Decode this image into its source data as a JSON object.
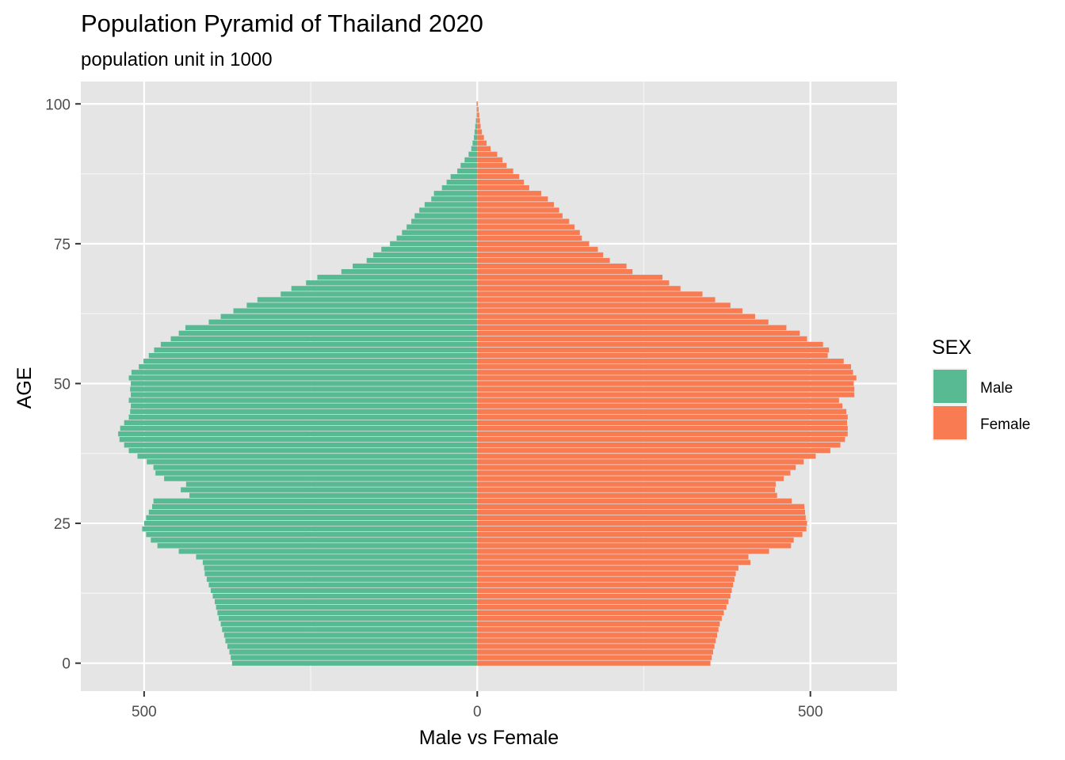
{
  "chart_data": {
    "type": "bar",
    "orientation": "horizontal",
    "title": "Population Pyramid of Thailand 2020",
    "subtitle": "population unit in 1000",
    "xlabel": "Male vs Female",
    "ylabel": "AGE",
    "xlim": [
      -595,
      630
    ],
    "ylim": [
      -5,
      104
    ],
    "x_ticks": [
      {
        "value": -500,
        "label": "500"
      },
      {
        "value": 0,
        "label": "0"
      },
      {
        "value": 500,
        "label": "500"
      }
    ],
    "y_ticks": [
      {
        "value": 0,
        "label": "0"
      },
      {
        "value": 25,
        "label": "25"
      },
      {
        "value": 50,
        "label": "50"
      },
      {
        "value": 75,
        "label": "75"
      },
      {
        "value": 100,
        "label": "100"
      }
    ],
    "grid": true,
    "legend": {
      "title": "SEX",
      "placement": "right"
    },
    "colors": {
      "Male": "#57ba93",
      "Female": "#f97b52"
    },
    "ages": [
      0,
      1,
      2,
      3,
      4,
      5,
      6,
      7,
      8,
      9,
      10,
      11,
      12,
      13,
      14,
      15,
      16,
      17,
      18,
      19,
      20,
      21,
      22,
      23,
      24,
      25,
      26,
      27,
      28,
      29,
      30,
      31,
      32,
      33,
      34,
      35,
      36,
      37,
      38,
      39,
      40,
      41,
      42,
      43,
      44,
      45,
      46,
      47,
      48,
      49,
      50,
      51,
      52,
      53,
      54,
      55,
      56,
      57,
      58,
      59,
      60,
      61,
      62,
      63,
      64,
      65,
      66,
      67,
      68,
      69,
      70,
      71,
      72,
      73,
      74,
      75,
      76,
      77,
      78,
      79,
      80,
      81,
      82,
      83,
      84,
      85,
      86,
      87,
      88,
      89,
      90,
      91,
      92,
      93,
      94,
      95,
      96,
      97,
      98,
      99,
      100
    ],
    "series": [
      {
        "name": "Male",
        "values": [
          368,
          370,
          372,
          375,
          378,
          380,
          383,
          385,
          388,
          390,
          392,
          394,
          397,
          400,
          403,
          406,
          409,
          410,
          412,
          422,
          448,
          480,
          490,
          497,
          503,
          500,
          497,
          493,
          488,
          486,
          432,
          445,
          437,
          470,
          483,
          486,
          496,
          510,
          523,
          530,
          537,
          539,
          536,
          530,
          523,
          521,
          520,
          523,
          520,
          521,
          520,
          523,
          519,
          508,
          501,
          493,
          485,
          475,
          460,
          448,
          438,
          403,
          385,
          366,
          346,
          330,
          295,
          279,
          257,
          240,
          204,
          187,
          166,
          156,
          144,
          131,
          121,
          113,
          106,
          99,
          94,
          87,
          79,
          69,
          65,
          53,
          46,
          40,
          30,
          25,
          19,
          13,
          9,
          7,
          5,
          4,
          3,
          2,
          1,
          1,
          1
        ]
      },
      {
        "name": "Female",
        "values": [
          350,
          352,
          354,
          356,
          358,
          360,
          362,
          364,
          367,
          370,
          374,
          377,
          380,
          382,
          384,
          386,
          388,
          392,
          410,
          407,
          438,
          471,
          475,
          488,
          494,
          495,
          493,
          492,
          491,
          472,
          450,
          447,
          448,
          460,
          470,
          478,
          490,
          508,
          530,
          545,
          552,
          556,
          556,
          555,
          556,
          554,
          548,
          543,
          566,
          566,
          565,
          569,
          564,
          561,
          550,
          526,
          528,
          519,
          495,
          484,
          464,
          437,
          417,
          398,
          380,
          357,
          338,
          305,
          288,
          278,
          233,
          224,
          199,
          189,
          181,
          168,
          157,
          154,
          146,
          138,
          128,
          123,
          115,
          106,
          96,
          78,
          70,
          63,
          54,
          44,
          38,
          30,
          20,
          14,
          10,
          7,
          5,
          4,
          3,
          2,
          1
        ]
      }
    ]
  }
}
